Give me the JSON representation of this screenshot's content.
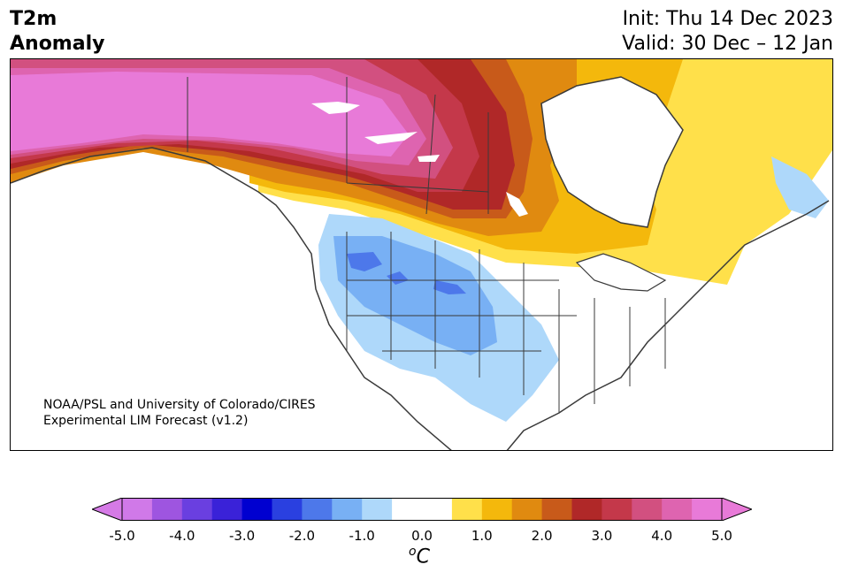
{
  "title": {
    "left_line1": "T2m",
    "left_line2": "Anomaly",
    "init": "Init: Thu 14 Dec 2023",
    "valid": "Valid: 30 Dec – 12 Jan"
  },
  "credit": {
    "line1": "NOAA/PSL and University of Colorado/CIRES",
    "line2": "Experimental LIM Forecast (v1.2)"
  },
  "colorbar": {
    "unit_base": "C",
    "unit_prefix": "o",
    "ticks": [
      "-5.0",
      "-4.0",
      "-3.0",
      "-2.0",
      "-1.0",
      "0.0",
      "1.0",
      "2.0",
      "3.0",
      "4.0",
      "5.0"
    ],
    "under_color": "#d57ae6",
    "over_color": "#e87ad8",
    "colors": [
      "#d079e8",
      "#9e55e0",
      "#6a3fe0",
      "#3a22d8",
      "#0000d0",
      "#2a40e0",
      "#4d78ea",
      "#78b0f4",
      "#aed8fa",
      "#ffffff",
      "#ffffff",
      "#ffe04a",
      "#f4b80c",
      "#e08a10",
      "#c85a1a",
      "#b02828",
      "#c4384a",
      "#d25080",
      "#de64b0",
      "#e87ad8"
    ]
  },
  "legend_colors": {
    "neg_light": "#aed8fa",
    "neg_mid": "#78b0f4",
    "neg_dark": "#4d78ea",
    "pos_max": "#e87ad8"
  }
}
